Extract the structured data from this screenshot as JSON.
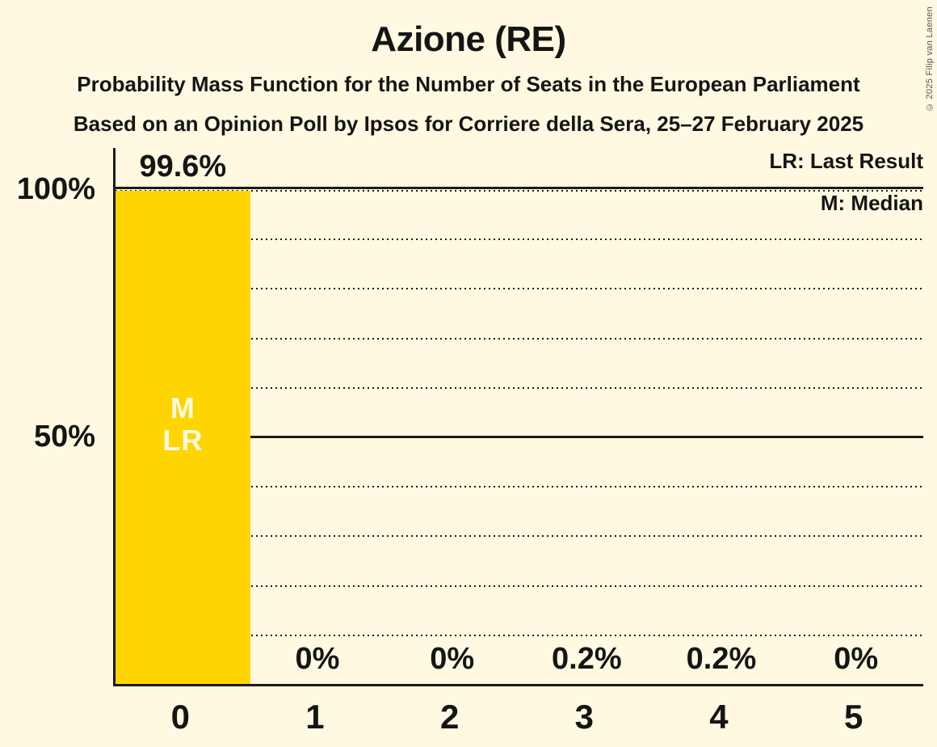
{
  "header": {
    "title": "Azione (RE)",
    "subtitle_line1": "Probability Mass Function for the Number of Seats in the European Parliament",
    "subtitle_line2": "Based on an Opinion Poll by Ipsos for Corriere della Sera, 25–27 February 2025"
  },
  "copyright": "© 2025 Filip van Laenen",
  "legend": {
    "last_result": "LR: Last Result",
    "median": "M: Median"
  },
  "chart_data": {
    "type": "bar",
    "title": "Azione (RE)",
    "categories": [
      "0",
      "1",
      "2",
      "3",
      "4",
      "5"
    ],
    "values": [
      99.6,
      0,
      0,
      0.2,
      0.2,
      0
    ],
    "value_labels": [
      "99.6%",
      "0%",
      "0%",
      "0.2%",
      "0.2%",
      "0%"
    ],
    "xlabel": "",
    "ylabel": "",
    "ylim": [
      0,
      100
    ],
    "y_ticks": [
      {
        "level": 100,
        "label": "100%"
      },
      {
        "level": 50,
        "label": "50%"
      }
    ],
    "grid_levels_dotted": [
      10,
      20,
      30,
      40,
      50,
      60,
      70,
      80,
      90,
      100
    ],
    "grid_levels_solid": [
      50,
      100
    ],
    "grid": true,
    "legend_position": "top-right",
    "annotations": {
      "bar_index": 0,
      "lines": [
        "M",
        "LR"
      ]
    },
    "colors": {
      "bar": "#FED500",
      "background": "#FFF9E1",
      "text": "#151515",
      "bar_label": "#FFF9E1"
    }
  }
}
